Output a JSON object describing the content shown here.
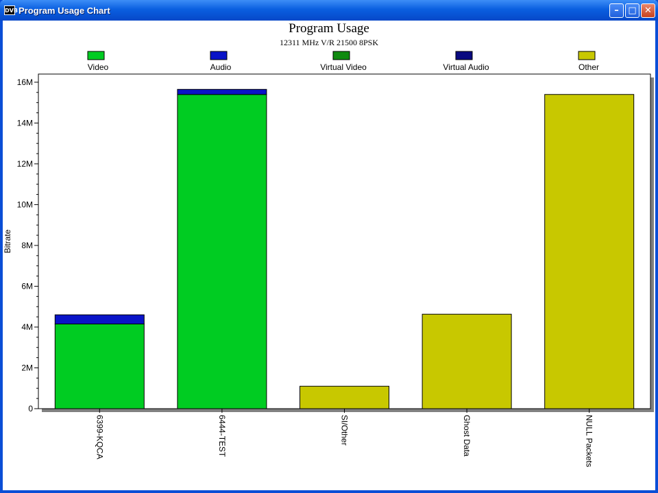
{
  "window": {
    "title": "Program Usage Chart",
    "app_icon_text": "DVB",
    "buttons": {
      "minimize": "–",
      "maximize": "□",
      "close": "✕"
    }
  },
  "chart_data": {
    "type": "bar",
    "stacked": true,
    "title": "Program Usage",
    "subtitle": "12311 MHz V/R 21500 8PSK",
    "xlabel": "",
    "ylabel": "Bitrate",
    "ylim": [
      0,
      16400000
    ],
    "yticks": [
      0,
      2000000,
      4000000,
      6000000,
      8000000,
      10000000,
      12000000,
      14000000,
      16000000
    ],
    "ytick_labels": [
      "0",
      "2M",
      "4M",
      "6M",
      "8M",
      "10M",
      "12M",
      "14M",
      "16M"
    ],
    "categories": [
      "6399-KQCA",
      "6444-TEST",
      "SI/Other",
      "Ghost Data",
      "NULL Packets"
    ],
    "legend_position": "top",
    "series": [
      {
        "name": "Video",
        "color": "#00cc22",
        "values": [
          4150000,
          15400000,
          0,
          0,
          0
        ]
      },
      {
        "name": "Audio",
        "color": "#0a14c8",
        "values": [
          450000,
          250000,
          0,
          0,
          0
        ]
      },
      {
        "name": "Virtual Video",
        "color": "#108a10",
        "values": [
          0,
          0,
          0,
          0,
          0
        ]
      },
      {
        "name": "Virtual Audio",
        "color": "#0a0a80",
        "values": [
          0,
          0,
          0,
          0,
          0
        ]
      },
      {
        "name": "Other",
        "color": "#c8c800",
        "values": [
          0,
          0,
          1100000,
          4630000,
          15400000
        ]
      }
    ]
  }
}
